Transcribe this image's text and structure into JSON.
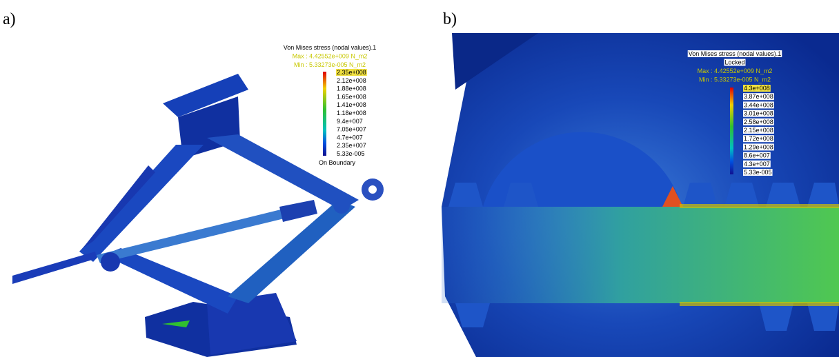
{
  "panels": [
    {
      "label": "a)",
      "legend": {
        "title": "Von Mises stress (nodal values).1",
        "max": "Max : 4.42552e+009 N_m2",
        "min": "Min : 5.33273e-005 N_m2",
        "values": [
          "2.35e+008",
          "2.12e+008",
          "1.88e+008",
          "1.65e+008",
          "1.41e+008",
          "1.18e+008",
          "9.4e+007",
          "7.05e+007",
          "4.7e+007",
          "2.35e+007",
          "5.33e-005"
        ],
        "footer": "On Boundary"
      }
    },
    {
      "label": "b)",
      "legend": {
        "title": "Von Mises stress (nodal values).1",
        "status": "Locked",
        "max": "Max : 4.42552e+009 N_m2",
        "min": "Min : 5.33273e-005 N_m2",
        "values": [
          "4.3e+008",
          "3.87e+008",
          "3.44e+008",
          "3.01e+008",
          "2.58e+008",
          "2.15e+008",
          "1.72e+008",
          "1.29e+008",
          "8.6e+007",
          "4.3e+007",
          "5.33e-005"
        ]
      }
    }
  ]
}
